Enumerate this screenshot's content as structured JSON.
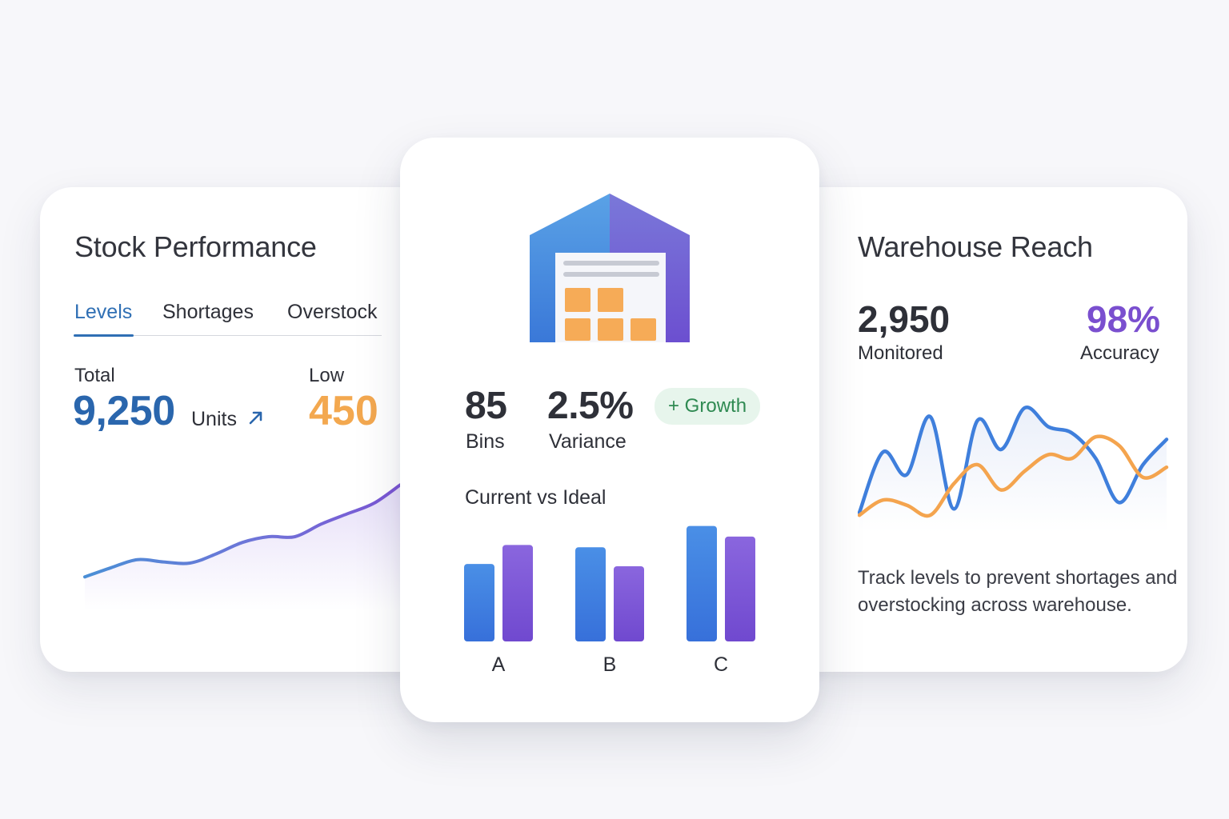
{
  "stock_card": {
    "title": "Stock Performance",
    "tabs": [
      {
        "label": "Levels",
        "active": true
      },
      {
        "label": "Shortages",
        "active": false
      },
      {
        "label": "Overstock",
        "active": false
      }
    ],
    "total_label": "Total",
    "total_value": "9,250",
    "total_unit": "Units",
    "trend_icon": "arrow-up-right-icon",
    "low_label": "Low",
    "low_value": "450",
    "colors": {
      "accent": "#2a66ad",
      "low": "#f3a84f",
      "line_start": "#4a8fd6",
      "line_end": "#7b55d4"
    }
  },
  "center_card": {
    "illustration": "warehouse-icon",
    "stats": [
      {
        "value": "85",
        "label": "Bins"
      },
      {
        "value": "2.5%",
        "label": "Variance"
      }
    ],
    "badge": "+ Growth",
    "chart_title": "Current vs Ideal",
    "colors": {
      "current": "#3a7ee0",
      "ideal": "#7c55d6",
      "badge_bg": "#e7f5ec",
      "badge_text": "#2f8a52"
    }
  },
  "reach_card": {
    "title": "Warehouse Reach",
    "monitored_value": "2,950",
    "monitored_label": "Monitored",
    "accuracy_value": "98%",
    "accuracy_label": "Accuracy",
    "description": "Track levels to prevent shortages and overstocking across warehouse.",
    "colors": {
      "monitored": "#2e3038",
      "accuracy": "#7a4fcf",
      "line_blue": "#3f7fdc",
      "line_orange": "#f4a44e"
    }
  },
  "chart_data": [
    {
      "type": "line",
      "x": [
        0,
        1,
        2,
        3,
        4,
        5,
        6,
        7,
        8,
        9,
        10,
        11,
        12
      ],
      "series": [
        {
          "values": [
            20,
            28,
            35,
            33,
            32,
            40,
            50,
            55,
            55,
            66,
            75,
            84,
            100
          ]
        }
      ],
      "xlabel": "",
      "ylabel": "",
      "grid": false,
      "ylim": [
        0,
        110
      ]
    },
    {
      "type": "bar",
      "categories": [
        "A",
        "B",
        "C"
      ],
      "series": [
        {
          "values": [
            102,
            124,
            152
          ]
        },
        {
          "values": [
            127,
            99,
            138
          ]
        }
      ],
      "ylim": [
        0,
        160
      ],
      "grid": false
    },
    {
      "type": "line",
      "x": [
        0,
        1,
        2,
        3,
        4,
        5,
        6,
        7,
        8,
        9,
        10,
        11,
        12,
        13
      ],
      "series": [
        {
          "values": [
            12,
            60,
            42,
            88,
            15,
            85,
            62,
            95,
            80,
            75,
            55,
            20,
            50,
            70
          ]
        },
        {
          "values": [
            10,
            22,
            18,
            10,
            35,
            50,
            30,
            45,
            58,
            55,
            72,
            65,
            40,
            48
          ]
        }
      ],
      "ylim": [
        0,
        100
      ],
      "grid": false
    }
  ]
}
